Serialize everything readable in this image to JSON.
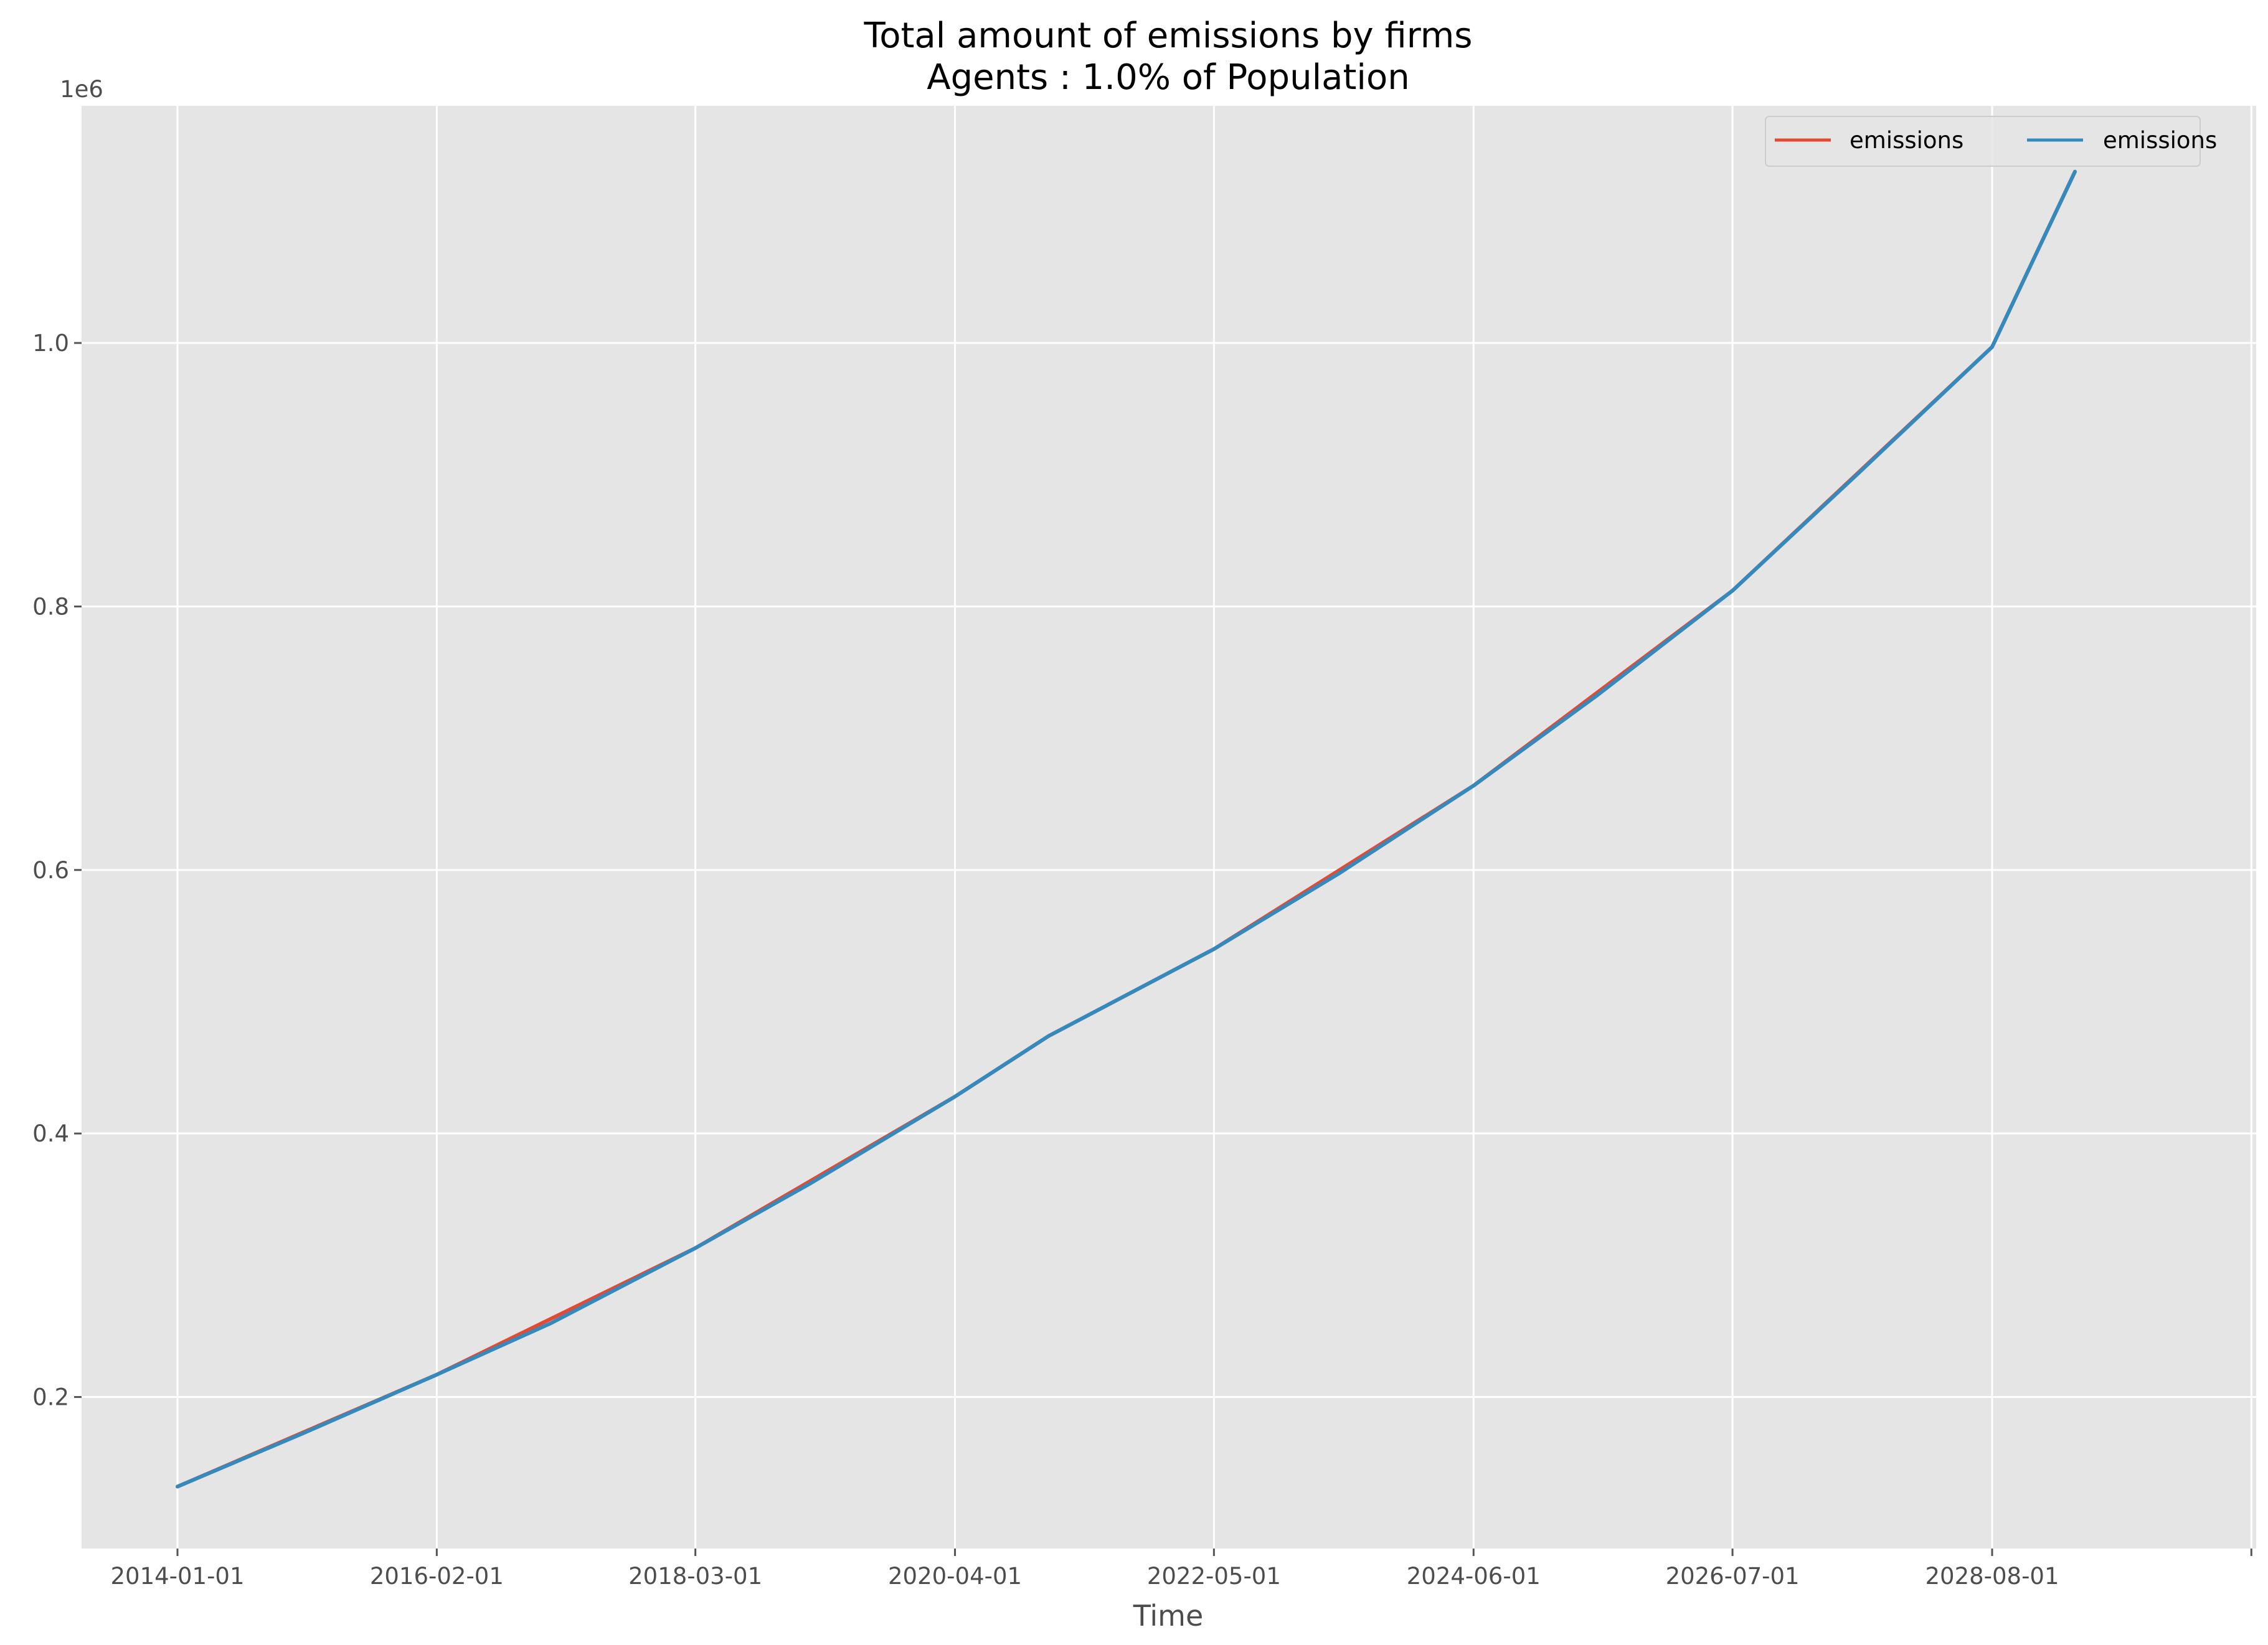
{
  "chart_data": {
    "type": "line",
    "title": "Total amount of emissions by firms",
    "subtitle": "Agents : 1.0% of Population",
    "xlabel": "Time",
    "ylabel": "",
    "y_offset_text": "1e6",
    "x_ticks": [
      "2014-01-01",
      "2016-02-01",
      "2018-03-01",
      "2020-04-01",
      "2022-05-01",
      "2024-06-01",
      "2026-07-01",
      "2028-08-01"
    ],
    "y_ticks": [
      0.2,
      0.4,
      0.6,
      0.8,
      1.0
    ],
    "y_tick_labels": [
      "0.2",
      "0.4",
      "0.6",
      "0.8",
      "1.0"
    ],
    "ylim": [
      0.085,
      1.18
    ],
    "grid": true,
    "legend": "top-right",
    "colors": {
      "background": "#e5e5e5",
      "grid": "#ffffff",
      "red": "#e24a33",
      "blue": "#348abd"
    },
    "series": [
      {
        "name": "emissions",
        "color": "#e24a33",
        "x": [
          "2014-01-01",
          "2016-02-01",
          "2018-03-01",
          "2020-04-01",
          "2021-01-01",
          "2022-05-01",
          "2024-06-01",
          "2026-07-01",
          "2028-08-01",
          "2029-04-01"
        ],
        "y": [
          0.132,
          0.217,
          0.313,
          0.428,
          0.474,
          0.54,
          0.664,
          0.812,
          0.997,
          1.13
        ]
      },
      {
        "name": "emissions",
        "color": "#348abd",
        "x": [
          "2014-01-01",
          "2015-01-01",
          "2016-02-01",
          "2017-01-01",
          "2018-03-01",
          "2019-02-01",
          "2020-04-01",
          "2021-01-01",
          "2022-05-01",
          "2023-05-01",
          "2024-06-01",
          "2025-06-01",
          "2026-07-01",
          "2027-07-01",
          "2028-08-01",
          "2029-04-01"
        ],
        "y": [
          0.132,
          0.172,
          0.217,
          0.256,
          0.313,
          0.362,
          0.428,
          0.474,
          0.54,
          0.597,
          0.664,
          0.733,
          0.812,
          0.9,
          0.997,
          1.13
        ]
      }
    ]
  }
}
